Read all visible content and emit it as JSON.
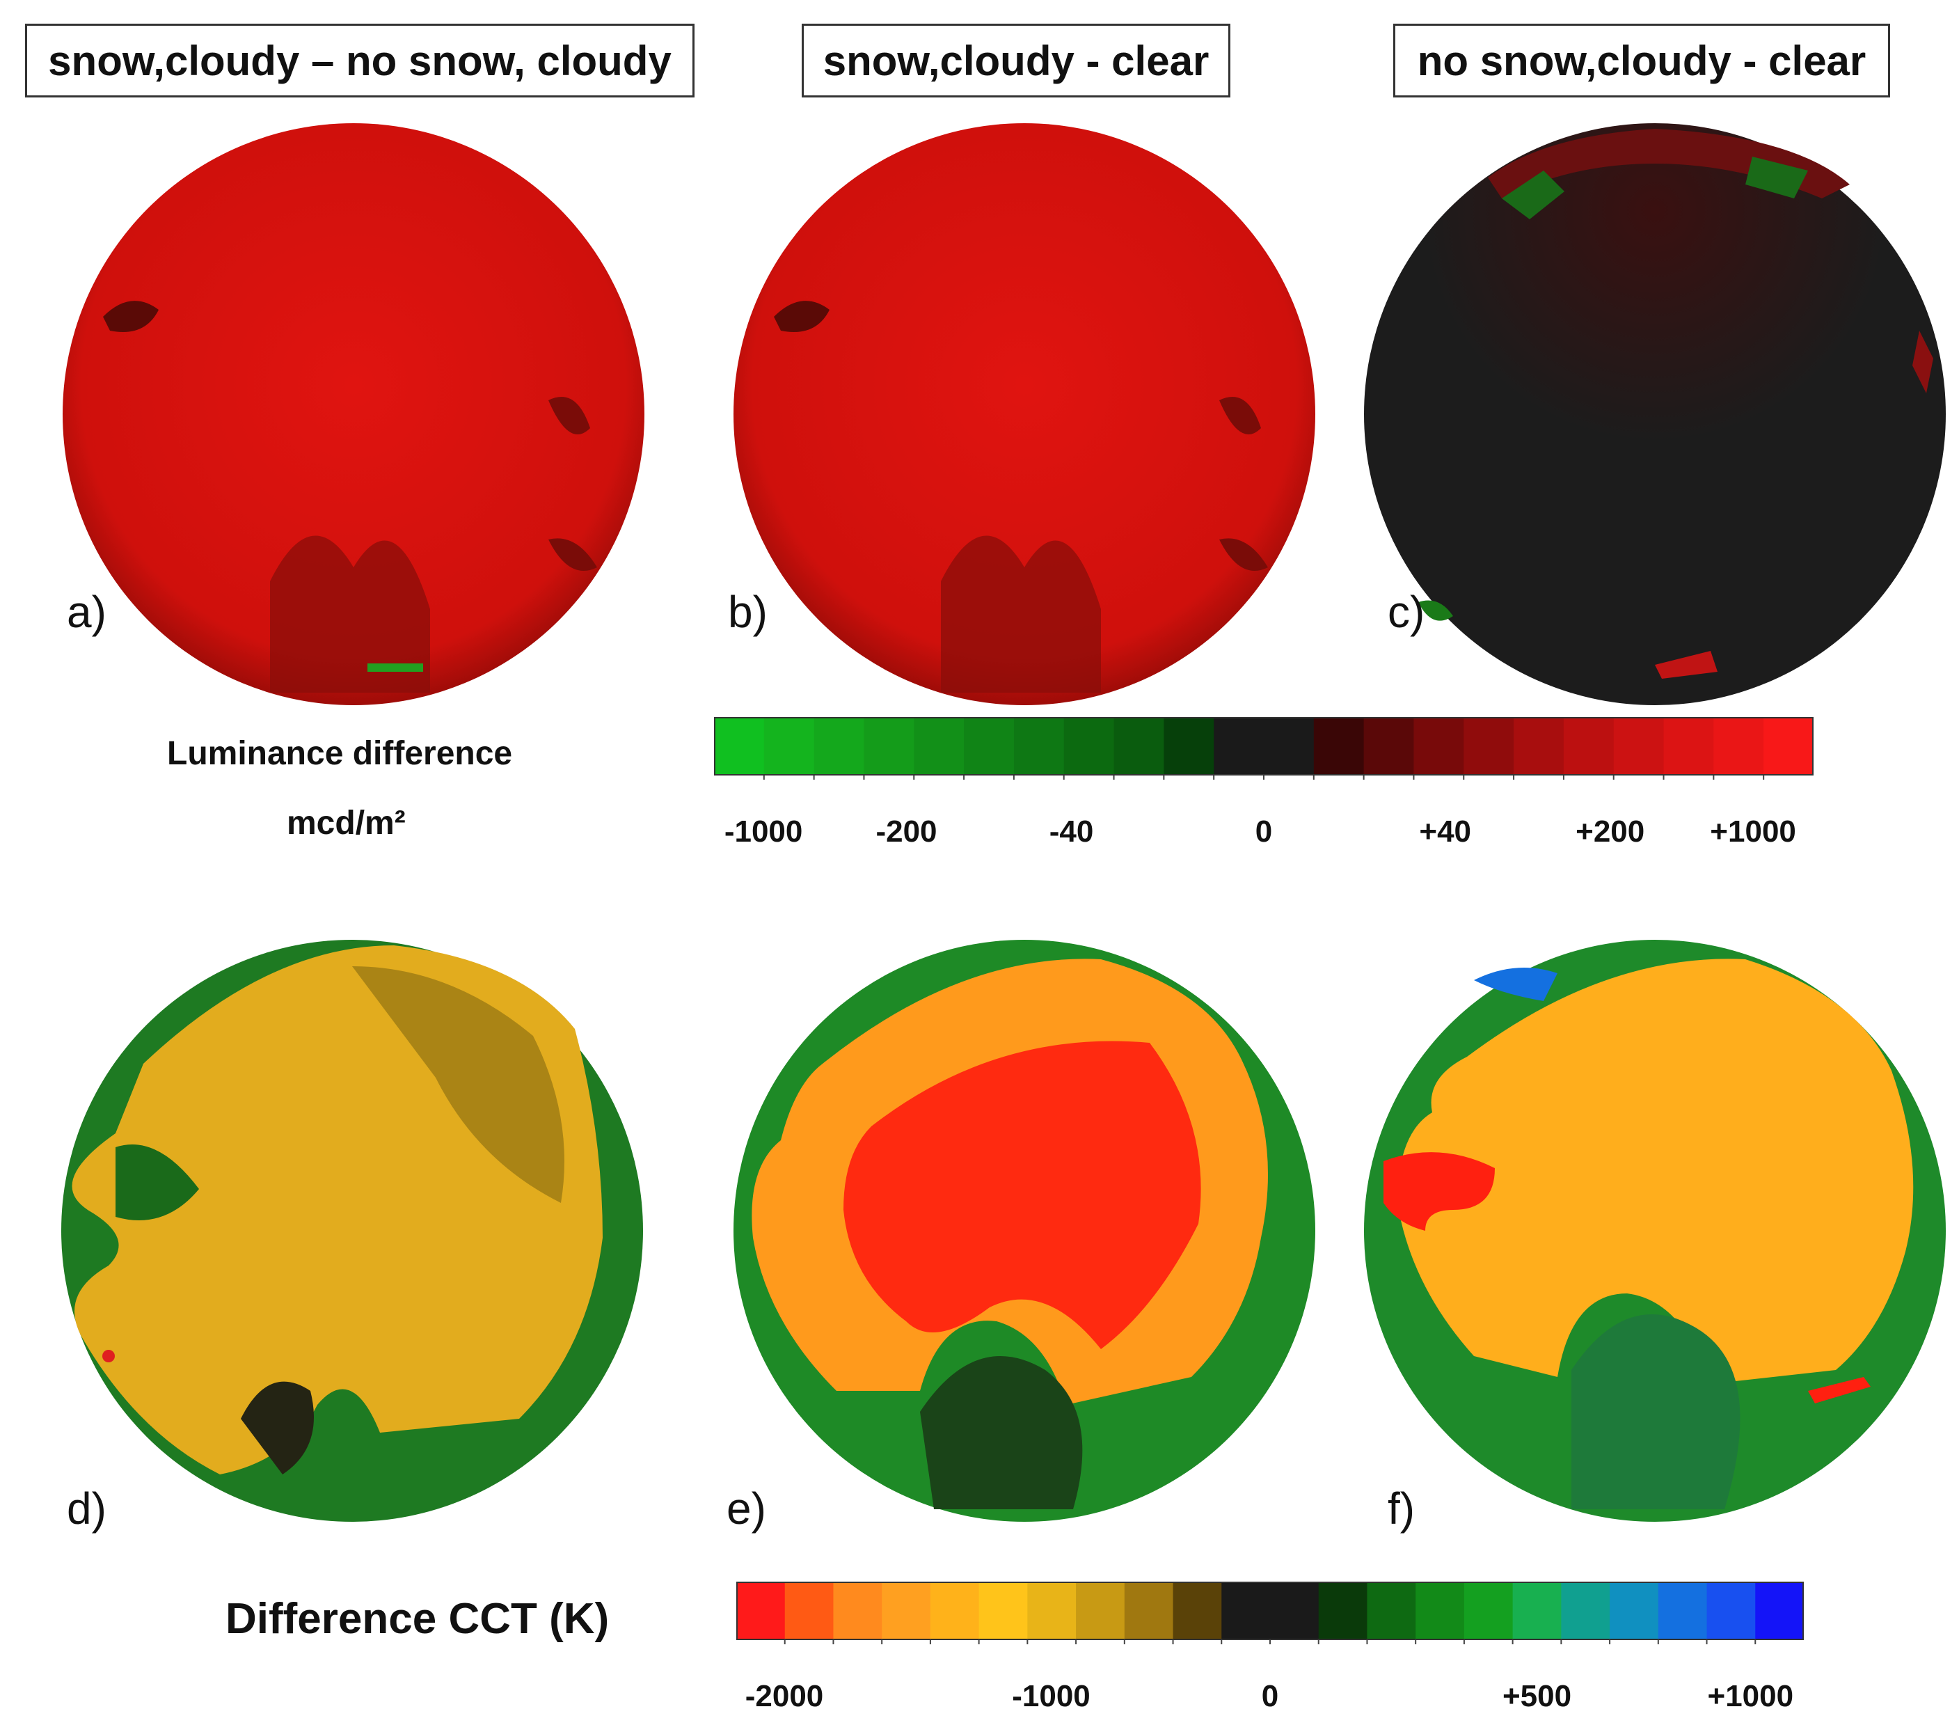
{
  "titles": {
    "col1": "snow,cloudy – no snow, cloudy",
    "col2": "snow,cloudy - clear",
    "col3": "no snow,cloudy - clear"
  },
  "panel_labels": {
    "a": "a)",
    "b": "b)",
    "c": "c)",
    "d": "d)",
    "e": "e)",
    "f": "f)"
  },
  "luminance_scale": {
    "label_line1": "Luminance difference",
    "label_line2": "mcd/m²",
    "colors": [
      "#10c020",
      "#14b41e",
      "#14a81c",
      "#149c1a",
      "#129018",
      "#108416",
      "#0e7814",
      "#0c6a10",
      "#0a5c0e",
      "#06400a",
      "#1a1a1a",
      "#1a1a1a",
      "#3a0606",
      "#5a0808",
      "#780a0a",
      "#900c0c",
      "#a80e0e",
      "#bc1010",
      "#cc1212",
      "#dc1414",
      "#ea1616",
      "#f81818"
    ],
    "ticks": [
      "-1000",
      "-200",
      "-40",
      "0",
      "+40",
      "+200",
      "+1000"
    ]
  },
  "cct_scale": {
    "label": "Difference CCT (K)",
    "colors": [
      "#ff1a1a",
      "#ff5a14",
      "#ff8a1e",
      "#ffa020",
      "#ffb21a",
      "#ffc41a",
      "#e8b418",
      "#c89a14",
      "#a07810",
      "#5a4208",
      "#1a1a1a",
      "#1a1a1a",
      "#0a3a0a",
      "#0e6a12",
      "#128a18",
      "#14a020",
      "#18b050",
      "#10a090",
      "#1090c0",
      "#1470e0",
      "#1850f0",
      "#1414f8"
    ],
    "ticks": [
      "-2000",
      "-1000",
      "0",
      "+500",
      "+1000"
    ]
  },
  "panel_colors": {
    "a": "#d9120e",
    "b": "#d9120e",
    "c": "#1c1c1c",
    "d": "#e2ac1e",
    "e": "#ff2a10",
    "f": "#ffae1c"
  }
}
